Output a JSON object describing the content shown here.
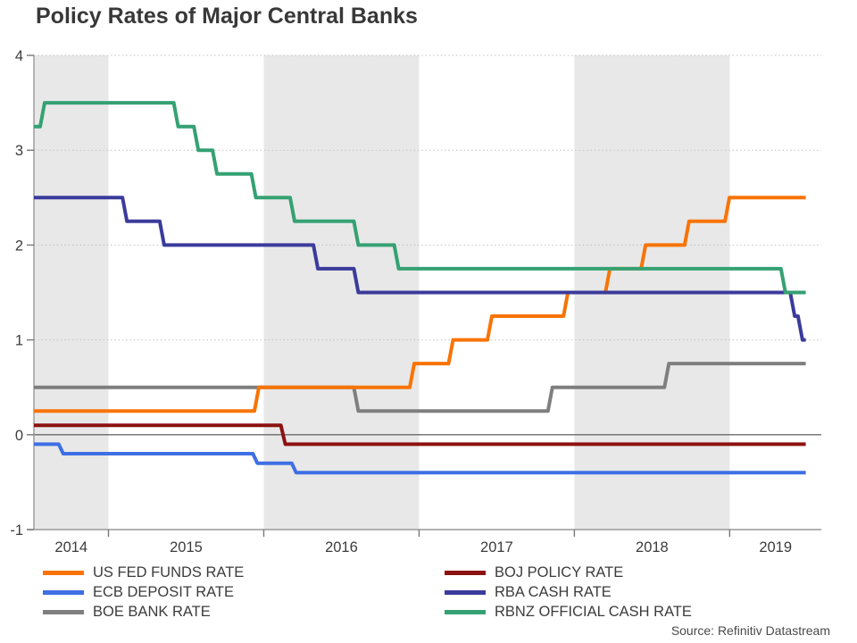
{
  "title": "Policy Rates of Major Central Banks",
  "source": "Source: Refinitiv Datastream",
  "chart_data": {
    "type": "line",
    "step_style": true,
    "title": "Policy Rates of Major Central Banks",
    "xlabel": "",
    "ylabel": "",
    "x_domain": [
      2014.52,
      2019.59
    ],
    "x_data_end": 2019.49,
    "y_domain": [
      -1,
      4
    ],
    "y_ticks": [
      4,
      3,
      2,
      1,
      0,
      -1
    ],
    "x_ticks": [
      2015,
      2016,
      2017,
      2018,
      2019
    ],
    "x_year_labels": [
      "2014",
      "2015",
      "2016",
      "2017",
      "2018",
      "2019"
    ],
    "grid": "dotted horizontal lines at 1,2,3,4; solid dark line at 0",
    "legend_position": "bottom two-column",
    "band_color": "#e8e8e8",
    "zero_line_color": "#4d4d4d",
    "axis_color": "#999999",
    "tick_color": "#777777",
    "grid_color": "#c2c2c2",
    "text_color": "#3c3c3c",
    "shaded_year_bands": [
      [
        2014.52,
        2015
      ],
      [
        2016,
        2017
      ],
      [
        2018,
        2019
      ]
    ],
    "draw_order": [
      2,
      0,
      3,
      1,
      4,
      5
    ],
    "series": [
      {
        "name": "US FED FUNDS RATE",
        "color": "#f87406",
        "legend_column": 1,
        "points": [
          [
            2014.52,
            0.25
          ],
          [
            2015.94,
            0.5
          ],
          [
            2016.94,
            0.75
          ],
          [
            2017.19,
            1.0
          ],
          [
            2017.44,
            1.25
          ],
          [
            2017.93,
            1.5
          ],
          [
            2018.2,
            1.75
          ],
          [
            2018.43,
            2.0
          ],
          [
            2018.71,
            2.25
          ],
          [
            2018.97,
            2.5
          ]
        ]
      },
      {
        "name": "ECB DEPOSIT RATE",
        "color": "#3e6fe4",
        "legend_column": 1,
        "points": [
          [
            2014.52,
            -0.1
          ],
          [
            2014.68,
            -0.2
          ],
          [
            2015.93,
            -0.3
          ],
          [
            2016.18,
            -0.4
          ]
        ]
      },
      {
        "name": "BOE BANK RATE",
        "color": "#7f7f7f",
        "legend_column": 1,
        "points": [
          [
            2014.52,
            0.5
          ],
          [
            2016.58,
            0.25
          ],
          [
            2017.83,
            0.5
          ],
          [
            2018.58,
            0.75
          ]
        ]
      },
      {
        "name": "BOJ POLICY RATE",
        "color": "#8c1210",
        "legend_column": 2,
        "points": [
          [
            2014.52,
            0.1
          ],
          [
            2016.11,
            -0.1
          ]
        ]
      },
      {
        "name": "RBA CASH RATE",
        "color": "#3b3b9c",
        "legend_column": 2,
        "points": [
          [
            2014.52,
            2.5
          ],
          [
            2015.09,
            2.25
          ],
          [
            2015.33,
            2.0
          ],
          [
            2016.32,
            1.75
          ],
          [
            2016.58,
            1.5
          ],
          [
            2019.39,
            1.25
          ],
          [
            2019.44,
            1.0
          ]
        ]
      },
      {
        "name": "RBNZ OFFICIAL CASH RATE",
        "color": "#35a173",
        "legend_column": 2,
        "points": [
          [
            2014.52,
            3.25
          ],
          [
            2014.56,
            3.5
          ],
          [
            2015.42,
            3.25
          ],
          [
            2015.55,
            3.0
          ],
          [
            2015.67,
            2.75
          ],
          [
            2015.92,
            2.5
          ],
          [
            2016.17,
            2.25
          ],
          [
            2016.58,
            2.0
          ],
          [
            2016.84,
            1.75
          ],
          [
            2019.33,
            1.5
          ]
        ]
      }
    ]
  }
}
